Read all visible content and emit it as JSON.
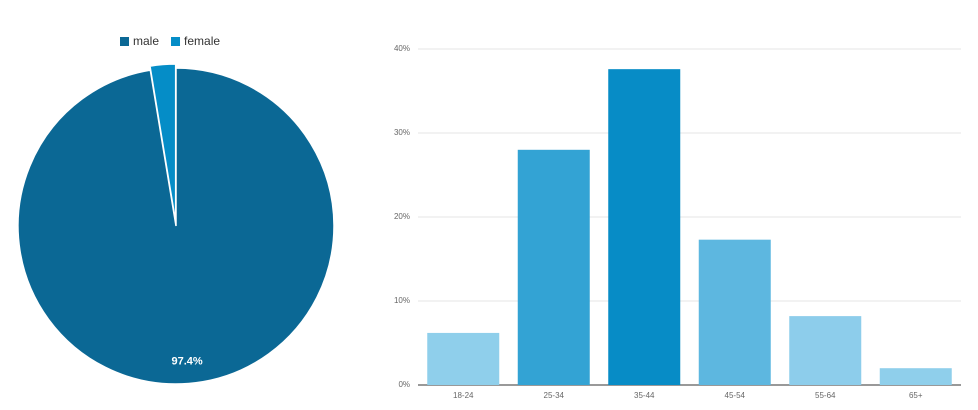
{
  "chart_data": [
    {
      "type": "pie",
      "categories": [
        "male",
        "female"
      ],
      "values": [
        97.4,
        2.6
      ],
      "value_labels": [
        "97.4%",
        null
      ],
      "colors": [
        "#0b6895",
        "#058dc7"
      ],
      "legend": "top"
    },
    {
      "type": "bar",
      "categories": [
        "18-24",
        "25-34",
        "35-44",
        "45-54",
        "55-64",
        "65+"
      ],
      "values": [
        6.2,
        28.0,
        37.6,
        17.3,
        8.2,
        2.0
      ],
      "colors": [
        "#8fcfeb",
        "#33a3d4",
        "#078cc6",
        "#5db7e0",
        "#8dcdeb",
        "#8fcfeb"
      ],
      "ylim": [
        0,
        40
      ],
      "yticks": [
        {
          "value": 0,
          "label": "0%"
        },
        {
          "value": 10,
          "label": "10%"
        },
        {
          "value": 20,
          "label": "20%"
        },
        {
          "value": 30,
          "label": "30%"
        },
        {
          "value": 40,
          "label": "40%"
        }
      ],
      "grid": true
    }
  ]
}
